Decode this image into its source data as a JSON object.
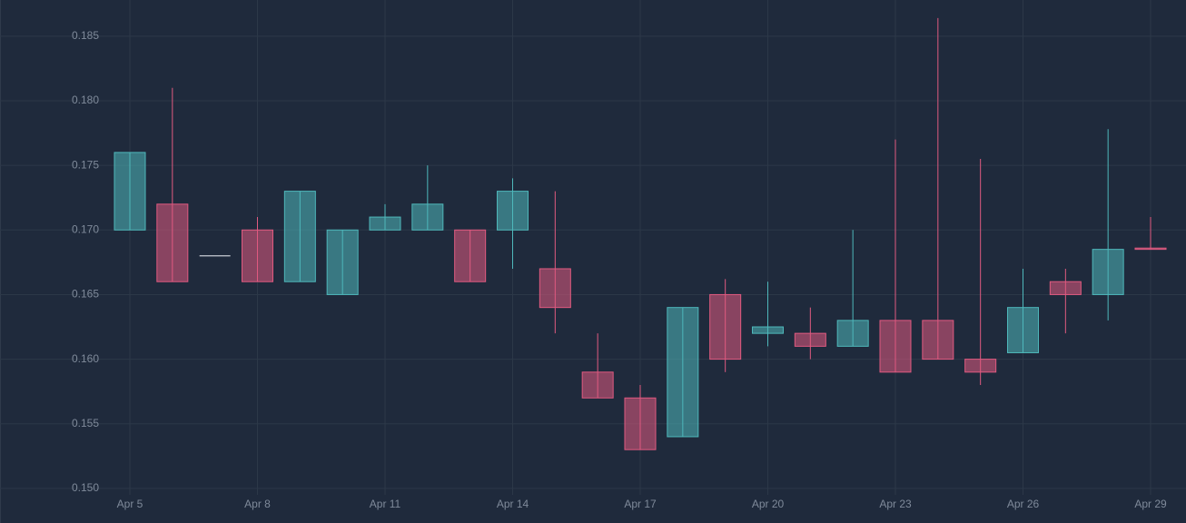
{
  "chart_data": {
    "type": "candlestick",
    "categories": [
      "Apr 5",
      null,
      null,
      "Apr 8",
      null,
      null,
      "Apr 11",
      null,
      null,
      "Apr 14",
      null,
      null,
      "Apr 17",
      null,
      null,
      "Apr 20",
      null,
      null,
      "Apr 23",
      null,
      null,
      "Apr 26",
      null,
      null,
      "Apr 29"
    ],
    "open": [
      0.17,
      0.172,
      0.168,
      0.17,
      0.166,
      0.165,
      0.17,
      0.17,
      0.17,
      0.17,
      0.167,
      0.159,
      0.157,
      0.154,
      0.165,
      0.162,
      0.162,
      0.161,
      0.163,
      0.163,
      0.16,
      0.1605,
      0.166,
      0.165,
      0.1686
    ],
    "high": [
      0.176,
      0.181,
      0.168,
      0.171,
      0.173,
      0.17,
      0.172,
      0.175,
      0.17,
      0.174,
      0.173,
      0.162,
      0.158,
      0.164,
      0.1662,
      0.166,
      0.164,
      0.17,
      0.177,
      0.1864,
      0.1755,
      0.167,
      0.167,
      0.1778,
      0.171
    ],
    "low": [
      0.17,
      0.166,
      0.168,
      0.166,
      0.166,
      0.165,
      0.17,
      0.17,
      0.166,
      0.167,
      0.162,
      0.157,
      0.153,
      0.154,
      0.159,
      0.161,
      0.16,
      0.161,
      0.159,
      0.16,
      0.158,
      0.1605,
      0.162,
      0.163,
      0.1685
    ],
    "close": [
      0.176,
      0.166,
      0.168,
      0.166,
      0.173,
      0.17,
      0.171,
      0.172,
      0.166,
      0.173,
      0.164,
      0.157,
      0.153,
      0.164,
      0.16,
      0.1625,
      0.161,
      0.163,
      0.159,
      0.16,
      0.159,
      0.164,
      0.165,
      0.1685,
      0.1685
    ],
    "up_color": "#4fb8bb",
    "down_color": "#e05a80",
    "flat_color": "#c8ccd4",
    "ylim": [
      0.1495,
      0.1878
    ],
    "yticks": [
      {
        "value": 0.15,
        "label": "0.150"
      },
      {
        "value": 0.155,
        "label": "0.155"
      },
      {
        "value": 0.16,
        "label": "0.160"
      },
      {
        "value": 0.165,
        "label": "0.165"
      },
      {
        "value": 0.17,
        "label": "0.170"
      },
      {
        "value": 0.175,
        "label": "0.175"
      },
      {
        "value": 0.18,
        "label": "0.180"
      },
      {
        "value": 0.185,
        "label": "0.185"
      }
    ],
    "grid": true
  }
}
